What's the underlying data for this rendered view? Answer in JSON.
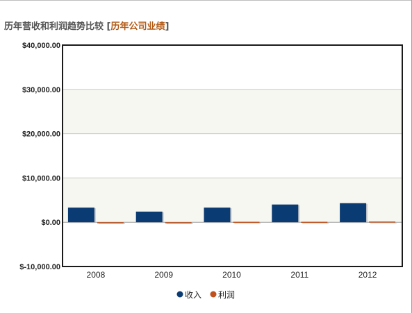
{
  "header": {
    "title": "历年营收和利润趋势比较",
    "bracket_open": "[",
    "link_label": "历年公司业绩",
    "bracket_close": "]"
  },
  "chart_data": {
    "type": "bar",
    "title": "",
    "xlabel": "",
    "ylabel": "",
    "categories": [
      "2008",
      "2009",
      "2010",
      "2011",
      "2012"
    ],
    "series": [
      {
        "name": "收入",
        "color": "#0b3b73",
        "values": [
          3300,
          2400,
          3300,
          4000,
          4300
        ]
      },
      {
        "name": "利润",
        "color": "#c0501c",
        "values": [
          0,
          -100,
          100,
          100,
          150
        ]
      }
    ],
    "ylim": [
      -10000,
      40000
    ],
    "y_ticks": [
      -10000,
      0,
      10000,
      20000,
      30000,
      40000
    ],
    "y_tick_labels": [
      "$-10,000.00",
      "$0.00",
      "$10,000.00",
      "$20,000.00",
      "$30,000.00",
      "$40,000.00"
    ],
    "grid": true,
    "legend_position": "bottom"
  }
}
